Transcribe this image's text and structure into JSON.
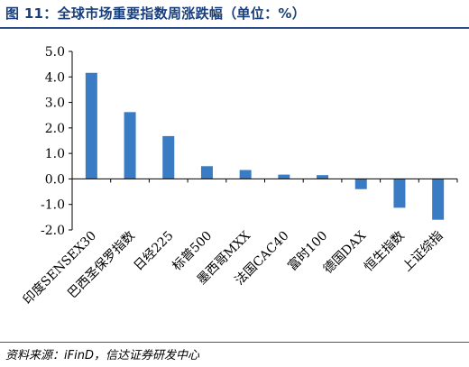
{
  "figure": {
    "title": "图 11：全球市场重要指数周涨跌幅（单位：%）",
    "source": "资料来源：iFinD，信达证券研发中心"
  },
  "chart_data": {
    "type": "bar",
    "title": "",
    "xlabel": "",
    "ylabel": "",
    "categories": [
      "印度SENSEX30",
      "巴西圣保罗指数",
      "日经225",
      "标普500",
      "墨西哥MXX",
      "法国CAC40",
      "富时100",
      "德国DAX",
      "恒生指数",
      "上证综指"
    ],
    "values": [
      4.16,
      2.62,
      1.68,
      0.5,
      0.35,
      0.17,
      0.15,
      -0.4,
      -1.13,
      -1.6
    ],
    "ylim": [
      -2.0,
      5.0
    ],
    "yticks": [
      "-2.0",
      "-1.0",
      "0.0",
      "1.0",
      "2.0",
      "3.0",
      "4.0",
      "5.0"
    ],
    "grid": false,
    "legend": "none",
    "bar_color": "#3a7cc4",
    "axis_color": "#000000"
  }
}
